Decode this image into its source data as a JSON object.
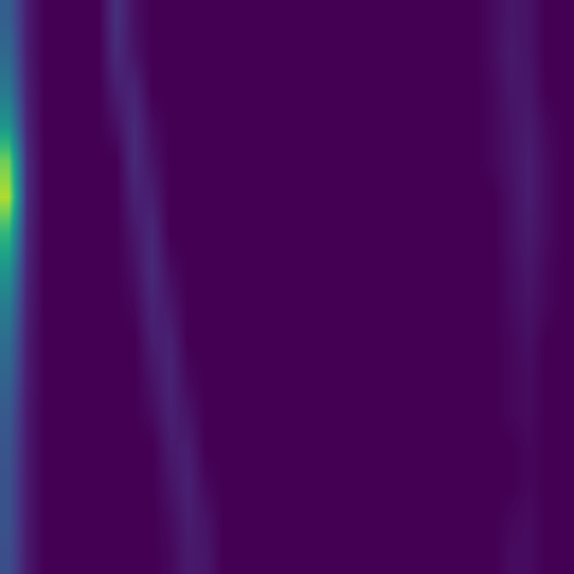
{
  "chart_data": {
    "type": "heatmap",
    "color": "viridis",
    "color_range": [
      0,
      1
    ],
    "tick_labels": false,
    "cells": [
      [
        0.3,
        0.08,
        0,
        0,
        0,
        0,
        0.14,
        0.04,
        0,
        0,
        0,
        0,
        0,
        0,
        0,
        0,
        0,
        0,
        0,
        0,
        0,
        0,
        0,
        0,
        0,
        0,
        0,
        0.03,
        0.06,
        0.05,
        0,
        0
      ],
      [
        0.34,
        0.08,
        0,
        0,
        0,
        0,
        0.12,
        0.05,
        0,
        0,
        0,
        0,
        0,
        0,
        0,
        0,
        0,
        0,
        0,
        0,
        0,
        0,
        0,
        0,
        0,
        0,
        0,
        0.03,
        0.07,
        0.05,
        0,
        0
      ],
      [
        0.4,
        0.09,
        0,
        0,
        0,
        0,
        0.08,
        0.1,
        0,
        0,
        0,
        0,
        0,
        0,
        0,
        0,
        0,
        0,
        0,
        0,
        0,
        0,
        0,
        0,
        0,
        0,
        0,
        0.02,
        0.06,
        0.06,
        0,
        0
      ],
      [
        0.52,
        0.1,
        0,
        0,
        0,
        0,
        0.04,
        0.12,
        0.03,
        0,
        0,
        0,
        0,
        0,
        0,
        0,
        0,
        0,
        0,
        0,
        0,
        0,
        0,
        0,
        0,
        0,
        0,
        0.02,
        0.05,
        0.07,
        0.02,
        0
      ],
      [
        0.78,
        0.12,
        0,
        0,
        0,
        0,
        0,
        0.12,
        0.05,
        0,
        0,
        0,
        0,
        0,
        0,
        0,
        0,
        0,
        0,
        0,
        0,
        0,
        0,
        0,
        0,
        0,
        0,
        0.02,
        0.05,
        0.08,
        0.03,
        0
      ],
      [
        0.88,
        0.12,
        0,
        0,
        0,
        0,
        0,
        0.09,
        0.08,
        0,
        0,
        0,
        0,
        0,
        0,
        0,
        0,
        0,
        0,
        0,
        0,
        0,
        0,
        0,
        0,
        0,
        0,
        0,
        0.04,
        0.08,
        0.03,
        0
      ],
      [
        0.66,
        0.11,
        0,
        0,
        0,
        0,
        0,
        0.06,
        0.11,
        0,
        0,
        0,
        0,
        0,
        0,
        0,
        0,
        0,
        0,
        0,
        0,
        0,
        0,
        0,
        0,
        0,
        0,
        0,
        0.04,
        0.07,
        0.03,
        0
      ],
      [
        0.52,
        0.1,
        0,
        0,
        0,
        0,
        0,
        0.04,
        0.12,
        0.03,
        0,
        0,
        0,
        0,
        0,
        0,
        0,
        0,
        0,
        0,
        0,
        0,
        0,
        0,
        0,
        0,
        0,
        0,
        0.03,
        0.06,
        0.02,
        0
      ],
      [
        0.42,
        0.09,
        0,
        0,
        0,
        0,
        0,
        0.02,
        0.1,
        0.06,
        0,
        0,
        0,
        0,
        0,
        0,
        0,
        0,
        0,
        0,
        0,
        0,
        0,
        0,
        0,
        0,
        0,
        0,
        0.03,
        0.05,
        0.02,
        0
      ],
      [
        0.36,
        0.08,
        0,
        0,
        0,
        0,
        0,
        0,
        0.08,
        0.09,
        0,
        0,
        0,
        0,
        0,
        0,
        0,
        0,
        0,
        0,
        0,
        0,
        0,
        0,
        0,
        0,
        0,
        0,
        0.02,
        0.04,
        0,
        0
      ],
      [
        0.32,
        0.08,
        0,
        0,
        0,
        0,
        0,
        0,
        0.05,
        0.1,
        0.02,
        0,
        0,
        0,
        0,
        0,
        0,
        0,
        0,
        0,
        0,
        0,
        0,
        0,
        0,
        0,
        0,
        0,
        0.02,
        0.03,
        0,
        0
      ],
      [
        0.28,
        0.07,
        0,
        0,
        0,
        0,
        0,
        0,
        0.03,
        0.09,
        0.05,
        0,
        0,
        0,
        0,
        0,
        0,
        0,
        0,
        0,
        0,
        0,
        0,
        0,
        0,
        0,
        0,
        0,
        0.02,
        0.03,
        0,
        0
      ],
      [
        0.26,
        0.07,
        0,
        0,
        0,
        0,
        0,
        0,
        0,
        0.07,
        0.08,
        0,
        0,
        0,
        0,
        0,
        0,
        0,
        0,
        0,
        0,
        0,
        0,
        0,
        0,
        0,
        0,
        0,
        0,
        0.02,
        0,
        0
      ],
      [
        0.25,
        0.07,
        0,
        0,
        0,
        0,
        0,
        0,
        0,
        0.05,
        0.09,
        0.02,
        0,
        0,
        0,
        0,
        0,
        0,
        0,
        0,
        0,
        0,
        0,
        0,
        0,
        0,
        0,
        0,
        0,
        0.02,
        0,
        0
      ],
      [
        0.25,
        0.07,
        0,
        0,
        0,
        0,
        0,
        0,
        0,
        0.03,
        0.08,
        0.05,
        0,
        0,
        0,
        0,
        0,
        0,
        0,
        0,
        0,
        0,
        0,
        0,
        0,
        0,
        0,
        0,
        0.02,
        0.03,
        0,
        0
      ],
      [
        0.24,
        0.07,
        0,
        0,
        0,
        0,
        0,
        0,
        0,
        0.02,
        0.07,
        0.06,
        0,
        0,
        0,
        0,
        0,
        0,
        0,
        0,
        0,
        0,
        0,
        0,
        0,
        0,
        0,
        0,
        0.03,
        0.03,
        0,
        0
      ]
    ]
  }
}
